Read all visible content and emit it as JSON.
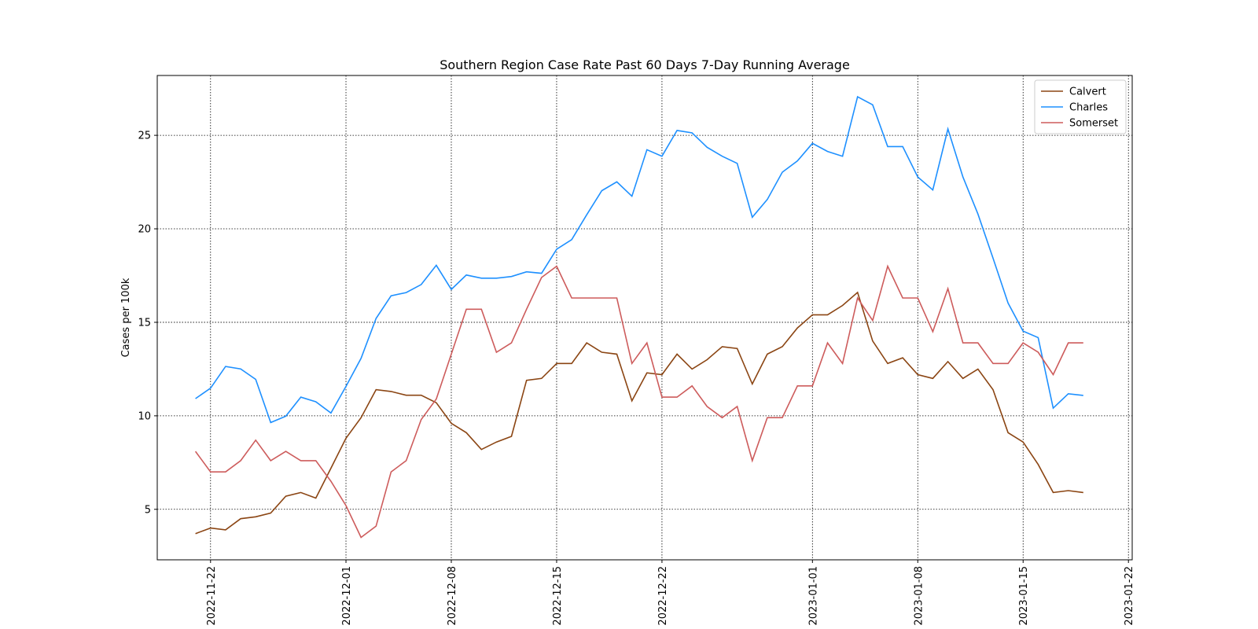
{
  "chart_data": {
    "type": "line",
    "title": "Southern Region Case Rate  Past 60 Days 7-Day Running Average",
    "ylabel": "Cases per 100k",
    "x": [
      "2022-11-21",
      "2022-11-22",
      "2022-11-23",
      "2022-11-24",
      "2022-11-25",
      "2022-11-26",
      "2022-11-27",
      "2022-11-28",
      "2022-11-29",
      "2022-11-30",
      "2022-12-01",
      "2022-12-02",
      "2022-12-03",
      "2022-12-04",
      "2022-12-05",
      "2022-12-06",
      "2022-12-07",
      "2022-12-08",
      "2022-12-09",
      "2022-12-10",
      "2022-12-11",
      "2022-12-12",
      "2022-12-13",
      "2022-12-14",
      "2022-12-15",
      "2022-12-16",
      "2022-12-17",
      "2022-12-18",
      "2022-12-19",
      "2022-12-20",
      "2022-12-21",
      "2022-12-22",
      "2022-12-23",
      "2022-12-24",
      "2022-12-25",
      "2022-12-26",
      "2022-12-27",
      "2022-12-28",
      "2022-12-29",
      "2022-12-30",
      "2022-12-31",
      "2023-01-01",
      "2023-01-02",
      "2023-01-03",
      "2023-01-04",
      "2023-01-05",
      "2023-01-06",
      "2023-01-07",
      "2023-01-08",
      "2023-01-09",
      "2023-01-10",
      "2023-01-11",
      "2023-01-12",
      "2023-01-13",
      "2023-01-14",
      "2023-01-15",
      "2023-01-16",
      "2023-01-17",
      "2023-01-18",
      "2023-01-19"
    ],
    "series": [
      {
        "name": "Calvert",
        "color": "#8b4513",
        "values": [
          3.7,
          4.0,
          3.9,
          4.5,
          4.6,
          4.8,
          5.7,
          5.9,
          5.6,
          7.2,
          8.8,
          9.9,
          11.4,
          11.3,
          11.1,
          11.1,
          10.7,
          9.6,
          9.1,
          8.2,
          8.6,
          8.9,
          11.9,
          12.0,
          12.8,
          12.8,
          13.9,
          13.4,
          13.3,
          10.8,
          12.3,
          12.2,
          13.3,
          12.5,
          13.0,
          13.7,
          13.6,
          11.7,
          13.3,
          13.7,
          14.7,
          15.4,
          15.4,
          15.9,
          16.6,
          14.0,
          12.8,
          13.1,
          12.2,
          12.0,
          12.9,
          12.0,
          12.5,
          11.4,
          9.1,
          8.6,
          7.4,
          5.9,
          6.0,
          5.9
        ]
      },
      {
        "name": "Charles",
        "color": "#1e90ff",
        "values": [
          10.92,
          11.48,
          12.64,
          12.51,
          11.95,
          9.64,
          9.98,
          11.0,
          10.75,
          10.15,
          11.57,
          13.07,
          15.21,
          16.42,
          16.59,
          17.02,
          18.05,
          16.76,
          17.53,
          17.36,
          17.36,
          17.45,
          17.7,
          17.62,
          18.91,
          19.42,
          20.75,
          22.04,
          22.51,
          21.74,
          24.23,
          23.88,
          25.26,
          25.13,
          24.36,
          23.88,
          23.5,
          20.62,
          21.57,
          23.03,
          23.63,
          24.57,
          24.14,
          23.88,
          27.06,
          26.63,
          24.4,
          24.4,
          22.77,
          22.08,
          25.34,
          22.77,
          20.79,
          18.43,
          16.03,
          14.53,
          14.18,
          10.41,
          11.18,
          11.09
        ]
      },
      {
        "name": "Somerset",
        "color": "#cd5c5c",
        "values": [
          8.1,
          7.0,
          7.0,
          7.6,
          8.7,
          7.6,
          8.1,
          7.6,
          7.6,
          6.5,
          5.2,
          3.5,
          4.1,
          7.0,
          7.6,
          9.8,
          10.9,
          13.3,
          15.7,
          15.7,
          13.4,
          13.9,
          15.7,
          17.4,
          18.0,
          16.3,
          16.3,
          16.3,
          16.3,
          12.8,
          13.9,
          11.0,
          11.0,
          11.6,
          10.5,
          9.9,
          10.5,
          7.6,
          9.9,
          9.9,
          11.6,
          11.6,
          13.9,
          12.8,
          16.3,
          15.1,
          18.0,
          16.3,
          16.3,
          14.5,
          16.8,
          13.9,
          13.9,
          12.8,
          12.8,
          13.9,
          13.4,
          12.2,
          13.9,
          13.9
        ]
      }
    ],
    "xlim": [
      "2022-11-18T11:00:00Z",
      "2023-01-22T06:00:00Z"
    ],
    "xticks": [
      "2022-11-22",
      "2022-12-01",
      "2022-12-08",
      "2022-12-15",
      "2022-12-22",
      "2023-01-01",
      "2023-01-08",
      "2023-01-15",
      "2023-01-22"
    ],
    "ylim": [
      2.3,
      28.2
    ],
    "yticks": [
      5,
      10,
      15,
      20,
      25
    ],
    "grid": true,
    "legend": "upper right"
  }
}
